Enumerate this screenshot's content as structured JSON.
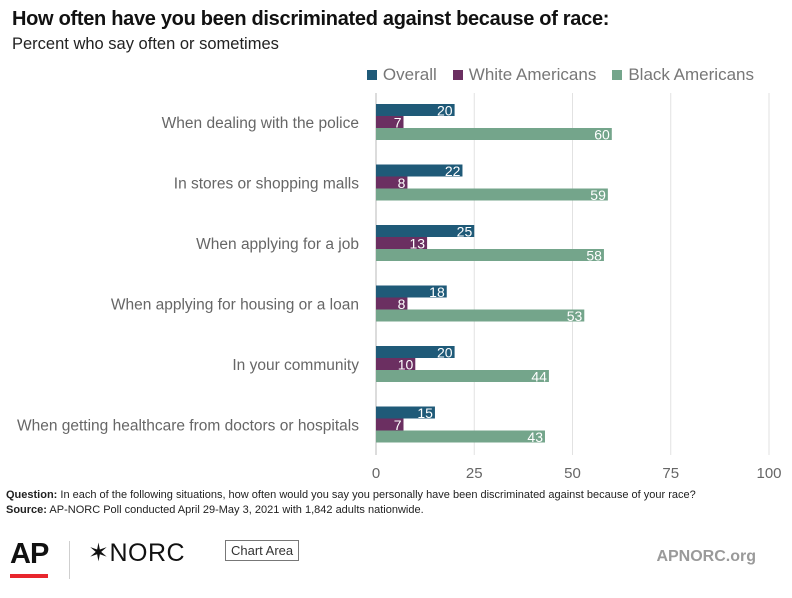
{
  "header": {
    "title": "How often have you been discriminated against because of race:",
    "subtitle": "Percent who say often or sometimes"
  },
  "legend": [
    {
      "label": "Overall",
      "color": "#1f5a78"
    },
    {
      "label": "White Americans",
      "color": "#6b2f61"
    },
    {
      "label": "Black Americans",
      "color": "#74a58b"
    }
  ],
  "chart_data": {
    "type": "bar",
    "orientation": "horizontal",
    "categories": [
      "When dealing with the police",
      "In stores or shopping malls",
      "When applying for a job",
      "When applying for housing or a loan",
      "In your community",
      "When getting healthcare from doctors or hospitals"
    ],
    "series": [
      {
        "name": "Overall",
        "values": [
          20,
          22,
          25,
          18,
          20,
          15
        ],
        "color": "#1f5a78"
      },
      {
        "name": "White Americans",
        "values": [
          7,
          8,
          13,
          8,
          10,
          7
        ],
        "color": "#6b2f61"
      },
      {
        "name": "Black Americans",
        "values": [
          60,
          59,
          58,
          53,
          44,
          43
        ],
        "color": "#74a58b"
      }
    ],
    "title": "How often have you been discriminated against because of race:",
    "subtitle": "Percent who say often or sometimes",
    "xlim": [
      0,
      100
    ],
    "xticks": [
      "0",
      "25",
      "50",
      "75",
      "100"
    ],
    "grid": true,
    "legend_position": "top-right"
  },
  "footer": {
    "question_label": "Question:",
    "question_text": " In each of the following situations, how often would you say you personally have been discriminated against because of your race?",
    "source_label": "Source:",
    "source_text": " AP-NORC Poll conducted April 29-May 3, 2021 with 1,842 adults nationwide.",
    "ap_logo": "AP",
    "norc_logo": "✶NORC",
    "chart_area_label": "Chart Area",
    "site": "APNORC.org"
  }
}
